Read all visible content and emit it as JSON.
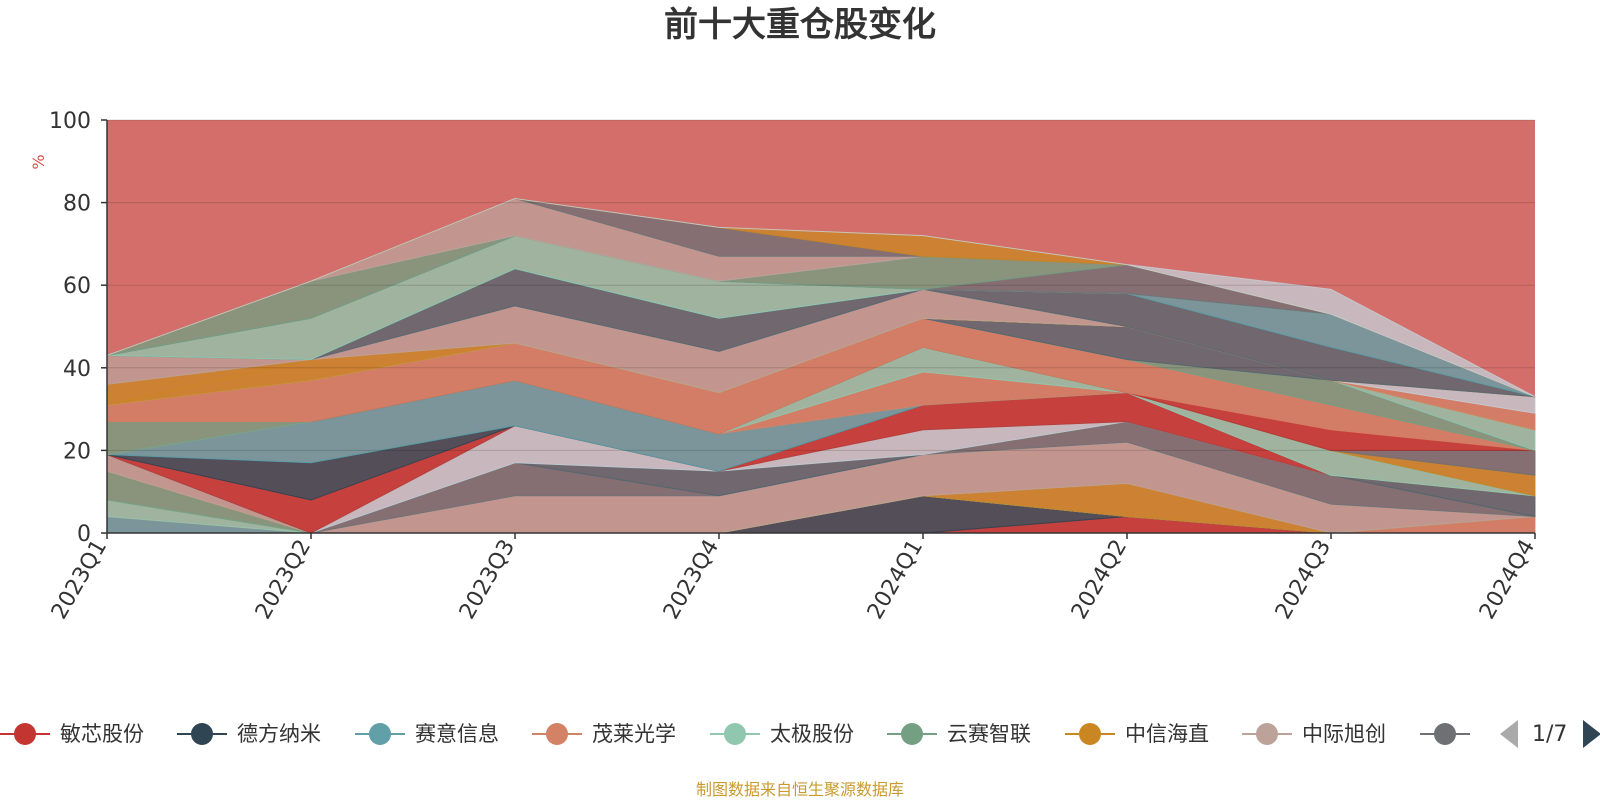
{
  "chart_data": {
    "type": "area",
    "stacked": true,
    "title": "前十大重仓股变化",
    "ylabel": "%",
    "ylim": [
      0,
      100
    ],
    "yticks": [
      0,
      20,
      40,
      60,
      80,
      100
    ],
    "categories": [
      "2023Q1",
      "2023Q2",
      "2023Q3",
      "2023Q4",
      "2024Q1",
      "2024Q2",
      "2024Q3",
      "2024Q4"
    ],
    "grid": true,
    "legend_position": "bottom",
    "series": [
      {
        "name": "敏芯股份",
        "color": "#c23531",
        "values": [
          0,
          0,
          0,
          0,
          0,
          4,
          0,
          0
        ]
      },
      {
        "name": "德方纳米",
        "color": "#2f4554",
        "values": [
          0,
          0,
          0,
          0,
          9,
          0,
          0,
          0
        ]
      },
      {
        "name": "赛意信息",
        "color": "#61a0a8",
        "values": [
          4,
          0,
          0,
          0,
          0,
          0,
          0,
          0
        ]
      },
      {
        "name": "茂莱光学",
        "color": "#d48265",
        "values": [
          0,
          0,
          0,
          0,
          0,
          0,
          0,
          4
        ]
      },
      {
        "name": "太极股份",
        "color": "#91c7ae",
        "values": [
          4,
          0,
          0,
          0,
          0,
          0,
          0,
          0
        ]
      },
      {
        "name": "云赛智联",
        "color": "#749f83",
        "values": [
          7,
          0,
          0,
          0,
          0,
          0,
          0,
          0
        ]
      },
      {
        "name": "中信海直",
        "color": "#ca8622",
        "values": [
          0,
          0,
          0,
          0,
          0,
          8,
          0,
          0
        ]
      },
      {
        "name": "中际旭创",
        "color": "#bda29a",
        "values": [
          4,
          0,
          9,
          9,
          10,
          10,
          7,
          0
        ]
      },
      {
        "name": "",
        "color": "#6e7074",
        "values": [
          0,
          0,
          8,
          0,
          0,
          5,
          7,
          0
        ]
      },
      {
        "name": "",
        "color": "#546570",
        "values": [
          0,
          0,
          0,
          6,
          0,
          0,
          0,
          5
        ]
      },
      {
        "name": "",
        "color": "#c4ccd3",
        "values": [
          0,
          0,
          9,
          0,
          6,
          0,
          0,
          0
        ]
      },
      {
        "name": "",
        "color": "#61a0a8",
        "values": [
          0,
          0,
          0,
          0,
          0,
          0,
          0,
          0
        ]
      },
      {
        "name": "",
        "color": "#c23531",
        "values": [
          0,
          8,
          0,
          0,
          6,
          7,
          0,
          0
        ]
      },
      {
        "name": "",
        "color": "#2f4554",
        "values": [
          0,
          9,
          0,
          0,
          0,
          0,
          0,
          0
        ]
      },
      {
        "name": "",
        "color": "#61a0a8",
        "values": [
          0,
          10,
          11,
          9,
          0,
          0,
          0,
          0
        ]
      },
      {
        "name": "",
        "color": "#d48265",
        "values": [
          0,
          0,
          0,
          0,
          8,
          0,
          0,
          0
        ]
      },
      {
        "name": "",
        "color": "#91c7ae",
        "values": [
          0,
          0,
          0,
          0,
          6,
          0,
          6,
          0
        ]
      },
      {
        "name": "",
        "color": "#749f83",
        "values": [
          8,
          0,
          0,
          0,
          0,
          0,
          0,
          0
        ]
      },
      {
        "name": "",
        "color": "#ca8622",
        "values": [
          0,
          0,
          0,
          0,
          0,
          0,
          0,
          5
        ]
      },
      {
        "name": "",
        "color": "#6e7074",
        "values": [
          0,
          0,
          0,
          0,
          0,
          0,
          0,
          6
        ]
      },
      {
        "name": "",
        "color": "#c23531",
        "values": [
          0,
          0,
          0,
          0,
          0,
          0,
          5,
          0
        ]
      },
      {
        "name": "",
        "color": "#d48265",
        "values": [
          4,
          10,
          9,
          10,
          7,
          8,
          6,
          0
        ]
      },
      {
        "name": "",
        "color": "#749f83",
        "values": [
          0,
          0,
          0,
          0,
          0,
          0,
          6,
          0
        ]
      },
      {
        "name": "",
        "color": "#546570",
        "values": [
          0,
          0,
          0,
          0,
          0,
          8,
          0,
          0
        ]
      },
      {
        "name": "",
        "color": "#91c7ae",
        "values": [
          0,
          0,
          0,
          0,
          0,
          0,
          0,
          5
        ]
      },
      {
        "name": "",
        "color": "#ca8622",
        "values": [
          0,
          0,
          0,
          0,
          0,
          0,
          0,
          0
        ]
      },
      {
        "name": "",
        "color": "#d48265",
        "values": [
          0,
          0,
          0,
          0,
          0,
          0,
          0,
          4
        ]
      },
      {
        "name": "",
        "color": "#c4ccd3",
        "values": [
          0,
          0,
          0,
          0,
          0,
          0,
          0,
          4
        ]
      },
      {
        "name": "",
        "color": "#ca8622",
        "values": [
          0,
          5,
          0,
          0,
          0,
          0,
          0,
          0
        ]
      },
      {
        "name": "",
        "color": "#ca8622",
        "values": [
          5,
          0,
          0,
          0,
          0,
          0,
          0,
          0
        ]
      },
      {
        "name": "",
        "color": "#bda29a",
        "values": [
          7,
          0,
          9,
          10,
          7,
          0,
          0,
          0
        ]
      },
      {
        "name": "",
        "color": "#546570",
        "values": [
          0,
          0,
          9,
          8,
          0,
          8,
          8,
          0
        ]
      },
      {
        "name": "",
        "color": "#61a0a8",
        "values": [
          0,
          0,
          0,
          0,
          0,
          0,
          8,
          0
        ]
      },
      {
        "name": "",
        "color": "#91c7ae",
        "values": [
          0,
          10,
          8,
          9,
          0,
          0,
          0,
          0
        ]
      },
      {
        "name": "",
        "color": "#6e7074",
        "values": [
          0,
          0,
          0,
          0,
          0,
          7,
          0,
          0
        ]
      },
      {
        "name": "",
        "color": "#749f83",
        "values": [
          0,
          9,
          0,
          0,
          8,
          0,
          0,
          0
        ]
      },
      {
        "name": "",
        "color": "#bda29a",
        "values": [
          0,
          0,
          9,
          6,
          0,
          0,
          0,
          0
        ]
      },
      {
        "name": "",
        "color": "#6e7074",
        "values": [
          0,
          0,
          0,
          7,
          0,
          0,
          0,
          0
        ]
      },
      {
        "name": "",
        "color": "#ca8622",
        "values": [
          0,
          0,
          0,
          0,
          5,
          0,
          0,
          0
        ]
      },
      {
        "name": "",
        "color": "#c4ccd3",
        "values": [
          0,
          0,
          0,
          0,
          0,
          0,
          6,
          0
        ]
      }
    ],
    "legend_items": [
      {
        "name": "敏芯股份",
        "color": "#c23531"
      },
      {
        "name": "德方纳米",
        "color": "#2f4554"
      },
      {
        "name": "赛意信息",
        "color": "#61a0a8"
      },
      {
        "name": "茂莱光学",
        "color": "#d48265"
      },
      {
        "name": "太极股份",
        "color": "#91c7ae"
      },
      {
        "name": "云赛智联",
        "color": "#749f83"
      },
      {
        "name": "中信海直",
        "color": "#ca8622"
      },
      {
        "name": "中际旭创",
        "color": "#bda29a"
      },
      {
        "name": "",
        "color": "#6e7074"
      }
    ],
    "background_color": "#d46e6b"
  },
  "pager": {
    "text": "1/7"
  },
  "source_note": "制图数据来自恒生聚源数据库"
}
